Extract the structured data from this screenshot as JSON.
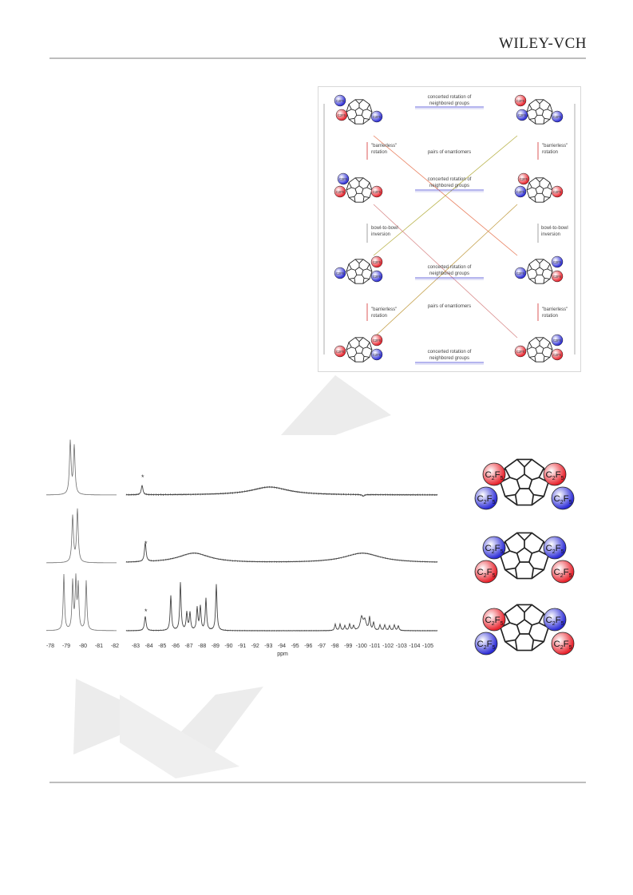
{
  "header": {
    "publisher": "WILEY-VCH"
  },
  "scheme": {
    "concerted_label_line1": "concerted rotation of",
    "concerted_label_line2": "neighbored groups",
    "barrierless_line1": "\"barrierless\"",
    "barrierless_line2": "rotation",
    "bowl_line1": "bowl-to-bowl",
    "bowl_line2": "inversion",
    "enantiomers": "pairs of enantiomers",
    "group_label": "C2F5"
  },
  "nmr": {
    "xlabel": "ppm",
    "ticks_left": [
      "-78",
      "-79",
      "-80",
      "-81",
      "-82"
    ],
    "ticks_right": [
      "-83",
      "-84",
      "-85",
      "-86",
      "-87",
      "-88",
      "-89",
      "-90",
      "-91",
      "-92",
      "-93",
      "-94",
      "-95",
      "-96",
      "-97",
      "-98",
      "-99",
      "-100",
      "-101",
      "-102",
      "-103",
      "-104",
      "-105"
    ],
    "impurity_mark": "*"
  },
  "molecules": {
    "group_main": "C",
    "sub1": "2",
    "mid": "F",
    "sub2": "5"
  },
  "colors": {
    "red_group": "#e8202a",
    "blue_group": "#2a2ad6",
    "watermark": "#ececec",
    "spectrum": "#6e6e6e"
  }
}
